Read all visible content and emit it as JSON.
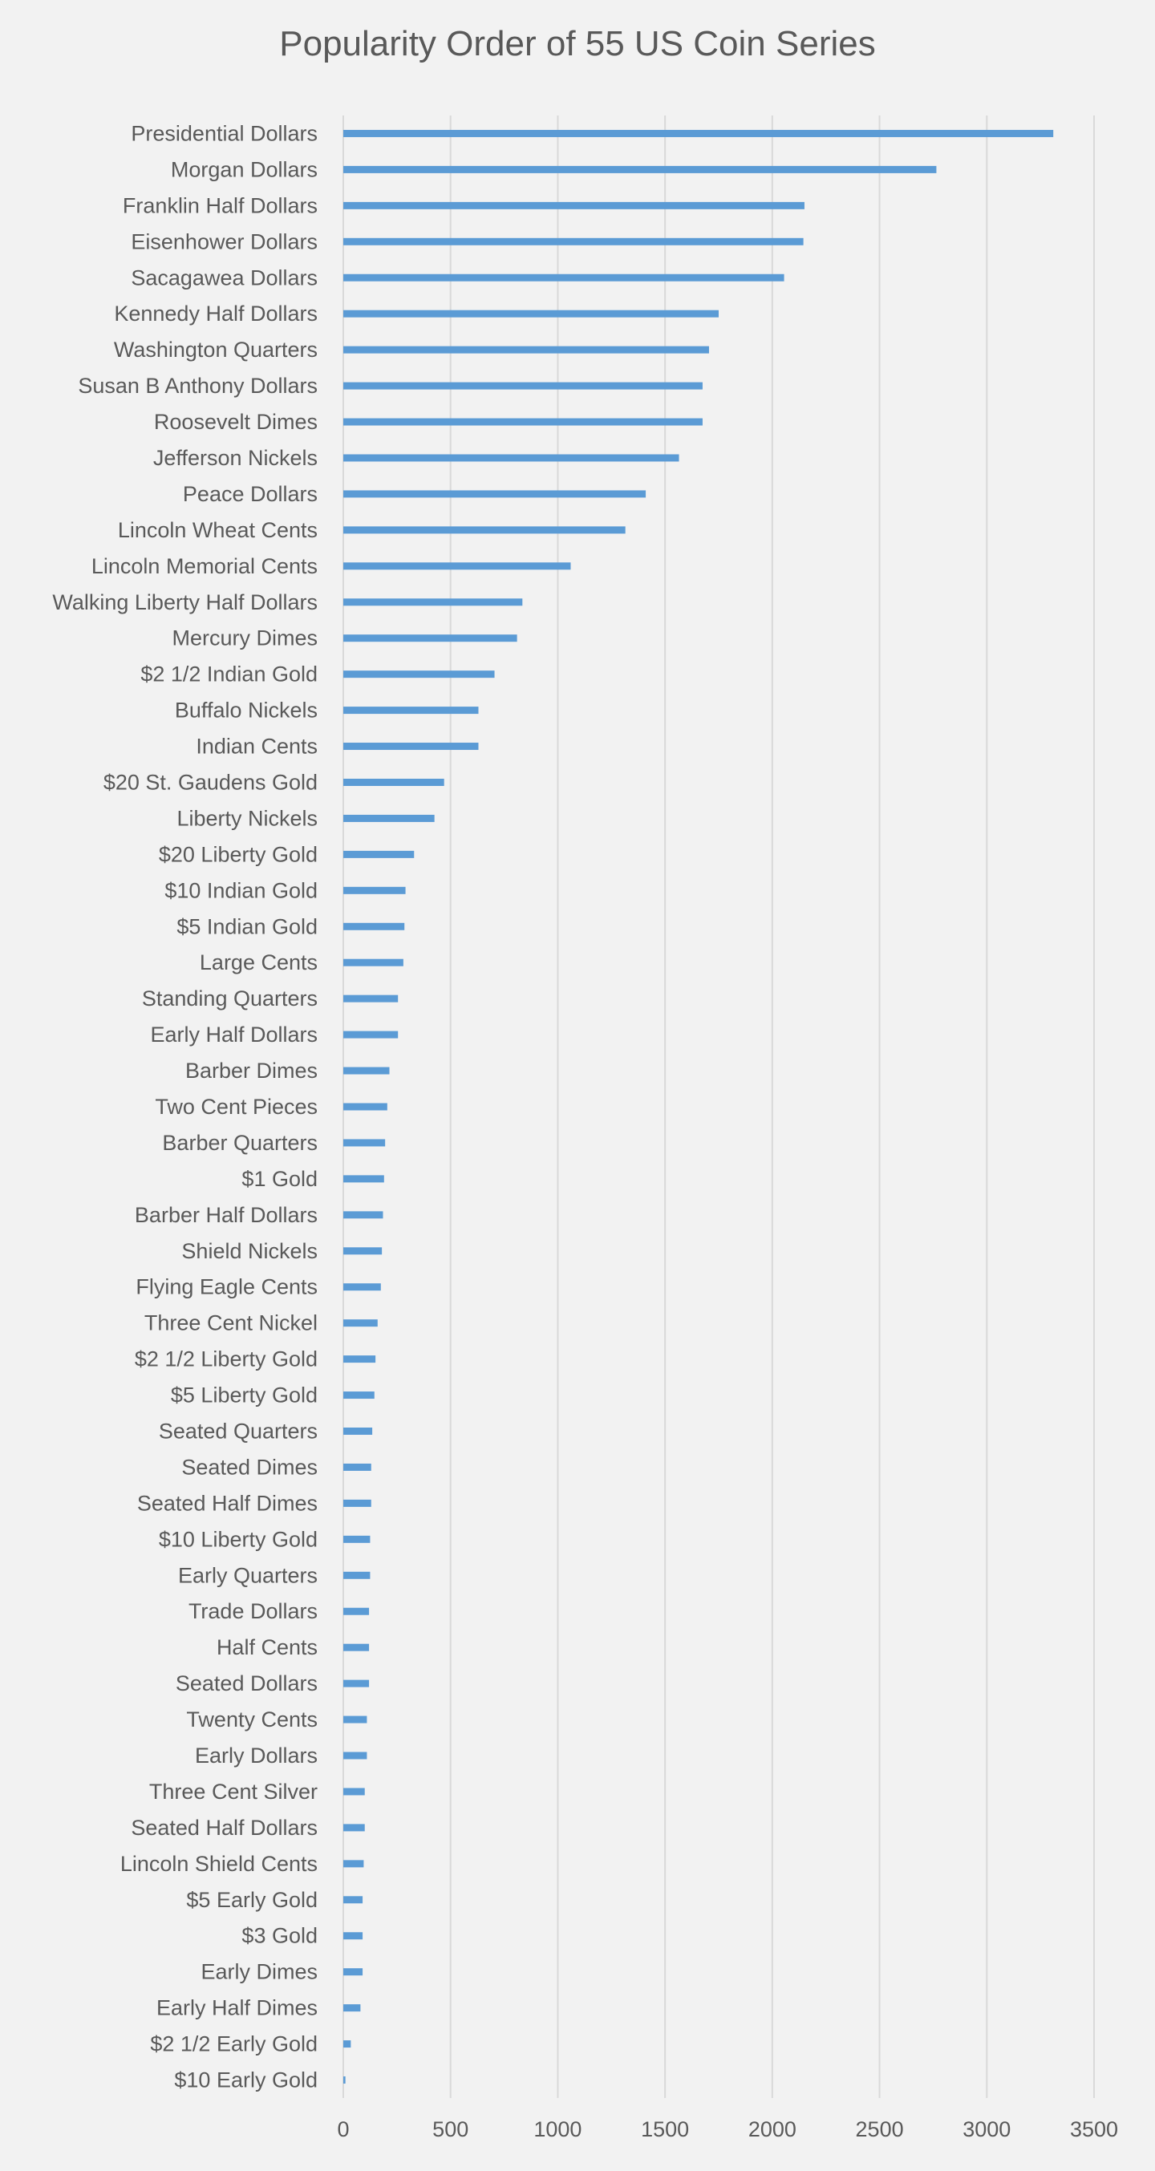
{
  "chart_data": {
    "type": "bar",
    "orientation": "horizontal",
    "title": "Popularity Order of 55 US Coin Series",
    "xlabel": "",
    "ylabel": "",
    "xlim": [
      0,
      3500
    ],
    "x_ticks": [
      0,
      500,
      1000,
      1500,
      2000,
      2500,
      3000,
      3500
    ],
    "grid": "vertical",
    "legend": "none",
    "bar_color": "#5b9bd5",
    "categories": [
      "Presidential Dollars",
      "Morgan Dollars",
      "Franklin Half Dollars",
      "Eisenhower Dollars",
      "Sacagawea Dollars",
      "Kennedy Half Dollars",
      "Washington Quarters",
      "Susan B Anthony Dollars",
      "Roosevelt Dimes",
      "Jefferson Nickels",
      "Peace Dollars",
      "Lincoln Wheat Cents",
      "Lincoln Memorial Cents",
      "Walking Liberty Half Dollars",
      "Mercury Dimes",
      "$2 1/2 Indian Gold",
      "Buffalo Nickels",
      "Indian Cents",
      "$20 St. Gaudens Gold",
      "Liberty Nickels",
      "$20 Liberty Gold",
      "$10 Indian Gold",
      "$5 Indian Gold",
      "Large Cents",
      "Standing Quarters",
      "Early Half Dollars",
      "Barber Dimes",
      "Two Cent Pieces",
      "Barber Quarters",
      "$1 Gold",
      "Barber Half Dollars",
      "Shield Nickels",
      "Flying Eagle Cents",
      "Three Cent Nickel",
      "$2 1/2 Liberty Gold",
      "$5 Liberty Gold",
      "Seated Quarters",
      "Seated Dimes",
      "Seated Half Dimes",
      "$10 Liberty Gold",
      "Early Quarters",
      "Trade Dollars",
      "Half Cents",
      "Seated Dollars",
      "Twenty Cents",
      "Early Dollars",
      "Three Cent Silver",
      "Seated Half Dollars",
      "Lincoln Shield Cents",
      "$5 Early Gold",
      "$3 Gold",
      "Early Dimes",
      "Early Half Dimes",
      "$2 1/2 Early Gold",
      "$10 Early Gold"
    ],
    "values": [
      3310,
      2765,
      2150,
      2145,
      2055,
      1750,
      1705,
      1675,
      1675,
      1565,
      1410,
      1315,
      1060,
      835,
      810,
      705,
      630,
      630,
      470,
      425,
      330,
      290,
      285,
      280,
      255,
      255,
      215,
      205,
      195,
      190,
      185,
      180,
      175,
      160,
      150,
      145,
      135,
      130,
      130,
      125,
      125,
      120,
      120,
      120,
      110,
      110,
      100,
      100,
      95,
      90,
      90,
      90,
      80,
      35,
      10
    ]
  }
}
